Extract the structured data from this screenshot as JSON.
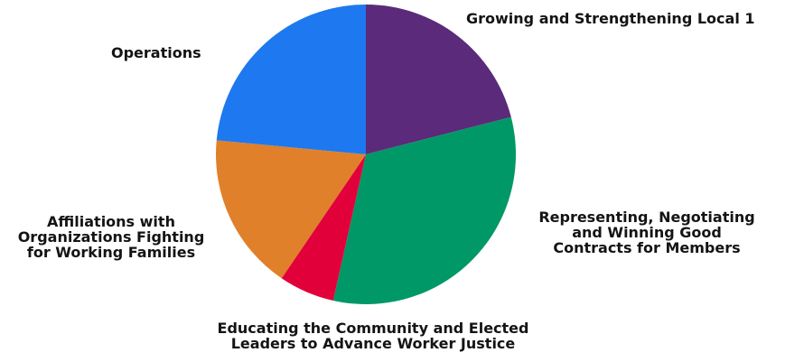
{
  "chart_data": {
    "type": "pie",
    "title": "",
    "slices": [
      {
        "label": [
          "Growing and Strengthening Local 1"
        ],
        "value": 21,
        "color": "#5b2a7a"
      },
      {
        "label": [
          "Representing, Negotiating",
          "and Winning Good",
          "Contracts for Members"
        ],
        "value": 32.5,
        "color": "#009866"
      },
      {
        "label": [
          "Educating the Community and Elected",
          "Leaders to Advance Worker Justice"
        ],
        "value": 6,
        "color": "#e2003a"
      },
      {
        "label": [
          "Affiliations with",
          "Organizations Fighting",
          "for Working Families"
        ],
        "value": 17,
        "color": "#e0802a"
      },
      {
        "label": [
          "Operations"
        ],
        "value": 23.5,
        "color": "#1e78ef"
      }
    ],
    "legend": "none"
  }
}
